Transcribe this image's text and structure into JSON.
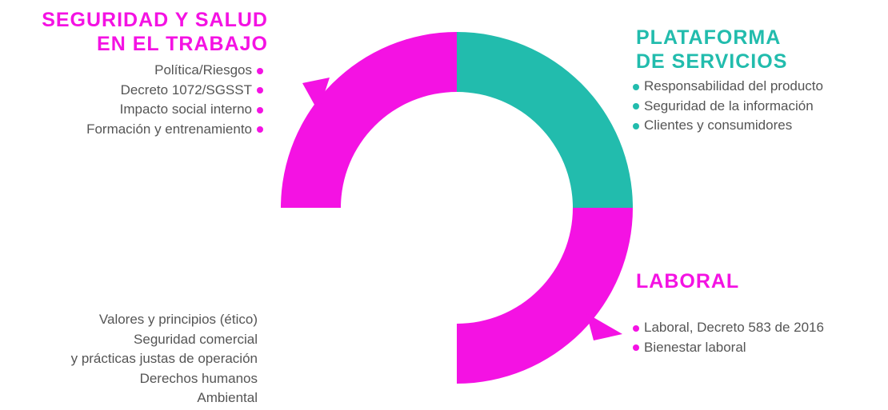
{
  "sections": [
    {
      "title": [
        "SEGURIDAD Y SALUD",
        "EN EL TRABAJO"
      ],
      "items": [
        "Política/Riesgos",
        "Decreto 1072/SGSST",
        "Impacto social interno",
        "Formación y entrenamiento"
      ]
    },
    {
      "title": [
        "PLATAFORMA",
        "DE SERVICIOS"
      ],
      "items": [
        "Responsabilidad del producto",
        "Seguridad de la información",
        "Clientes y consumidores"
      ]
    },
    {
      "title": [
        "LABORAL"
      ],
      "items": [
        "Laboral, Decreto 583 de 2016",
        "Bienestar laboral"
      ]
    },
    {
      "items": [
        "Valores y principios (ético)",
        "Seguridad comercial",
        "y prácticas justas de operación",
        "Derechos humanos",
        "Ambiental"
      ]
    }
  ]
}
